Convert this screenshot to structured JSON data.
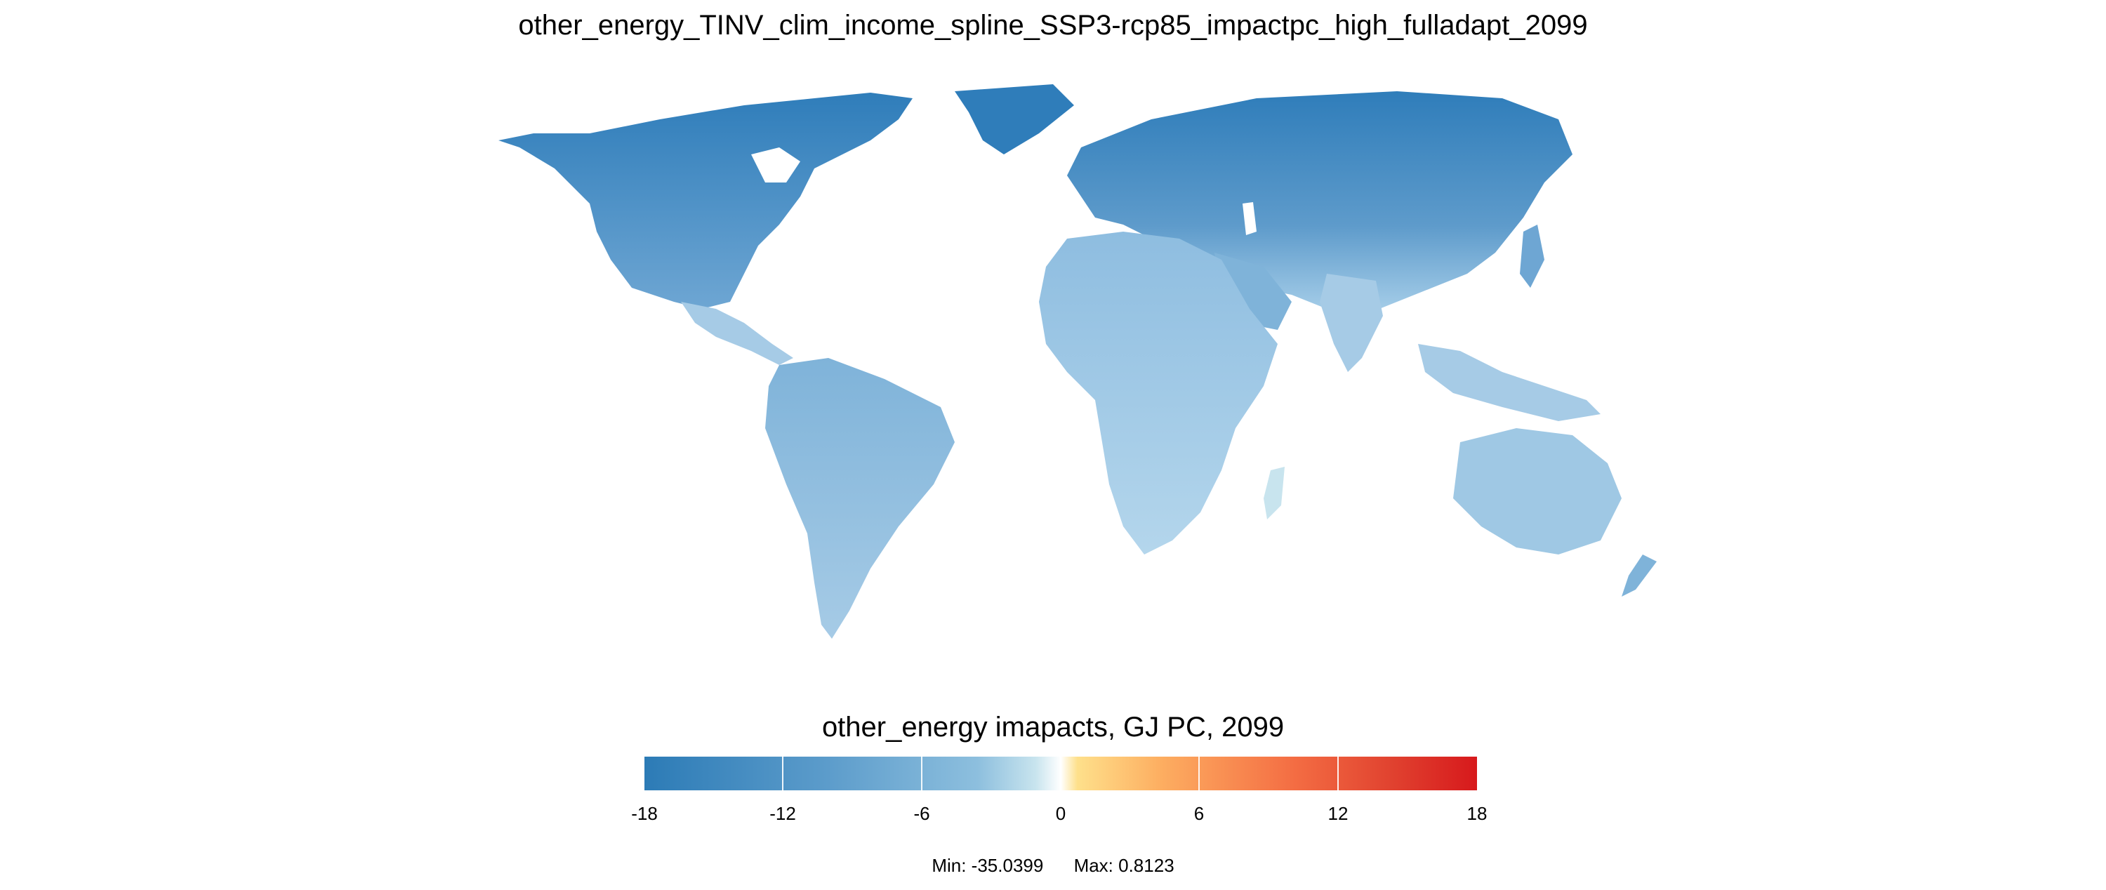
{
  "title": "other_energy_TINV_clim_income_spline_SSP3-rcp85_impactpc_high_fulladapt_2099",
  "legend": {
    "title": "other_energy imapacts, GJ PC, 2099",
    "ticks": [
      "-18",
      "-12",
      "-6",
      "0",
      "6",
      "12",
      "18"
    ],
    "min_label": "Min: -35.0399",
    "max_label": "Max: 0.8123"
  },
  "colors": {
    "strong_negative": "#2c7bb6",
    "mid_negative": "#7fb3d9",
    "weak_negative": "#b6d6ea",
    "neutral": "#ffffff",
    "weak_positive": "#fee08b",
    "strong_positive": "#d7191c"
  },
  "chart_data": {
    "type": "heatmap",
    "projection": "world-robinson",
    "colorscale_range": [
      -18,
      18
    ],
    "data_min": -35.0399,
    "data_max": 0.8123
  }
}
